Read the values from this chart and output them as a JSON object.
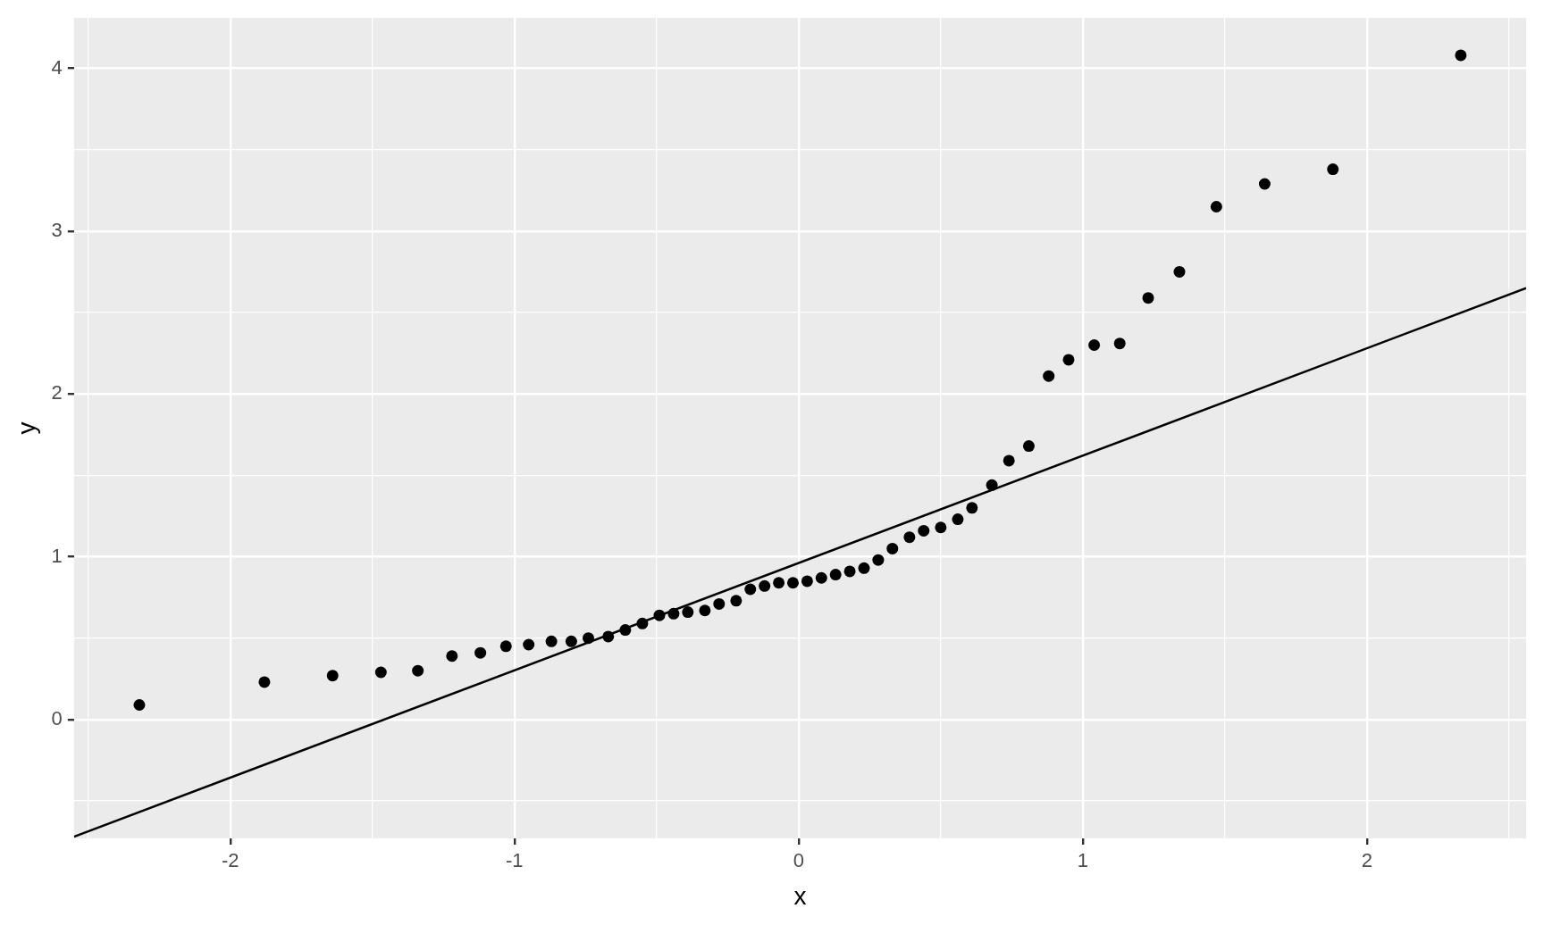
{
  "chart_data": {
    "type": "scatter",
    "xlabel": "x",
    "ylabel": "y",
    "xlim": [
      -2.55,
      2.56
    ],
    "ylim": [
      -0.73,
      4.31
    ],
    "xticks": [
      {
        "value": -2.5,
        "label": null
      },
      -2,
      {
        "value": -1.5,
        "label": null
      },
      -1,
      {
        "value": -0.5,
        "label": null
      },
      0,
      {
        "value": 0.5,
        "label": null
      },
      1,
      {
        "value": 1.5,
        "label": null
      },
      2,
      {
        "value": 2.5,
        "label": null
      }
    ],
    "yticks": [
      {
        "value": -0.5,
        "label": null
      },
      0,
      {
        "value": 0.5,
        "label": null
      },
      1,
      {
        "value": 1.5,
        "label": null
      },
      2,
      {
        "value": 2.5,
        "label": null
      },
      3,
      {
        "value": 3.5,
        "label": null
      },
      4
    ],
    "grid": true,
    "marker": "circle",
    "legend": false,
    "series": [
      {
        "color": "#000000",
        "x": [
          -2.32,
          -1.88,
          -1.64,
          -1.47,
          -1.34,
          -1.22,
          -1.12,
          -1.03,
          -0.95,
          -0.87,
          -0.8,
          -0.74,
          -0.67,
          -0.61,
          -0.55,
          -0.49,
          -0.44,
          -0.39,
          -0.33,
          -0.28,
          -0.22,
          -0.17,
          -0.12,
          -0.07,
          -0.02,
          0.03,
          0.08,
          0.13,
          0.18,
          0.23,
          0.28,
          0.33,
          0.39,
          0.44,
          0.5,
          0.56,
          0.61,
          0.68,
          0.74,
          0.81,
          0.88,
          0.95,
          1.04,
          1.13,
          1.23,
          1.34,
          1.47,
          1.64,
          1.88,
          2.33
        ],
        "values": [
          0.09,
          0.23,
          0.27,
          0.29,
          0.3,
          0.39,
          0.41,
          0.45,
          0.46,
          0.48,
          0.48,
          0.5,
          0.51,
          0.55,
          0.59,
          0.64,
          0.65,
          0.66,
          0.67,
          0.71,
          0.73,
          0.8,
          0.82,
          0.84,
          0.84,
          0.85,
          0.87,
          0.89,
          0.91,
          0.93,
          0.98,
          1.05,
          1.12,
          1.16,
          1.18,
          1.23,
          1.3,
          1.44,
          1.59,
          1.68,
          2.11,
          2.21,
          2.3,
          2.31,
          2.59,
          2.75,
          3.15,
          3.29,
          3.38,
          4.08
        ]
      },
      {
        "type": "line",
        "color": "#000000",
        "x": [
          -2.55,
          2.56
        ],
        "values": [
          -0.72,
          2.65
        ],
        "marker": "none"
      }
    ]
  }
}
